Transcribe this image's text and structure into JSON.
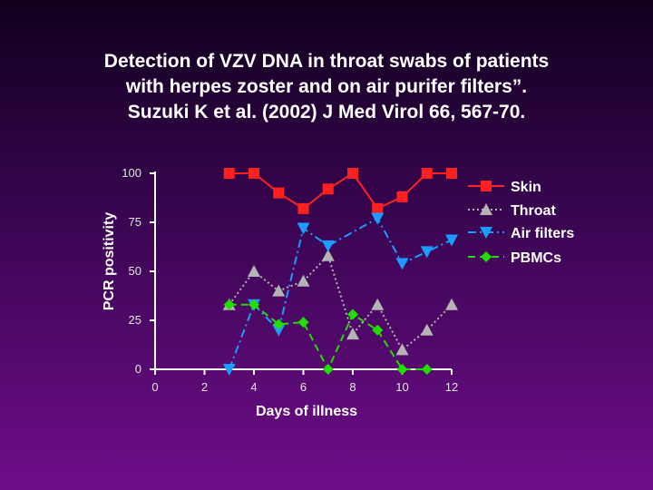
{
  "slide": {
    "title_lines": [
      "Detection of VZV DNA in throat swabs of patients",
      "with herpes zoster and on air purifer filters”.",
      "Suzuki K et al. (2002) J Med Virol 66, 567-70."
    ]
  },
  "chart_data": {
    "type": "line",
    "title": "",
    "xlabel": "Days of illness",
    "ylabel": "PCR positivity",
    "xlim": [
      0,
      12
    ],
    "ylim": [
      0,
      100
    ],
    "xticks": [
      "0",
      "2",
      "4",
      "6",
      "8",
      "10",
      "12"
    ],
    "yticks": [
      "0",
      "25",
      "50",
      "75",
      "100"
    ],
    "legend_position": "right",
    "series": [
      {
        "name": "Skin",
        "color": "#ff2020",
        "line_style": "solid",
        "marker": "square",
        "points": [
          [
            3,
            100
          ],
          [
            4,
            100
          ],
          [
            5,
            90
          ],
          [
            6,
            82
          ],
          [
            7,
            92
          ],
          [
            8,
            100
          ],
          [
            9,
            82
          ],
          [
            10,
            88
          ],
          [
            11,
            100
          ],
          [
            12,
            100
          ]
        ]
      },
      {
        "name": "Throat",
        "color": "#b4b4b4",
        "line_style": "dotted",
        "marker": "triangle-up",
        "points": [
          [
            3,
            33
          ],
          [
            4,
            50
          ],
          [
            5,
            40
          ],
          [
            6,
            45
          ],
          [
            7,
            58
          ],
          [
            8,
            18
          ],
          [
            9,
            33
          ],
          [
            10,
            10
          ],
          [
            11,
            20
          ],
          [
            12,
            33
          ]
        ]
      },
      {
        "name": "Air filters",
        "color": "#1e9bff",
        "line_style": "dashdot",
        "marker": "triangle-down",
        "points": [
          [
            3,
            0
          ],
          [
            4,
            33
          ],
          [
            5,
            20
          ],
          [
            6,
            72
          ],
          [
            7,
            63
          ],
          [
            9,
            77
          ],
          [
            10,
            54
          ],
          [
            11,
            60
          ],
          [
            12,
            66
          ]
        ]
      },
      {
        "name": "PBMCs",
        "color": "#22dd00",
        "line_style": "dashed",
        "marker": "diamond",
        "points": [
          [
            3,
            33
          ],
          [
            4,
            33
          ],
          [
            5,
            23
          ],
          [
            6,
            24
          ],
          [
            7,
            0
          ],
          [
            8,
            28
          ],
          [
            9,
            20
          ],
          [
            10,
            0
          ],
          [
            11,
            0
          ]
        ]
      }
    ]
  }
}
